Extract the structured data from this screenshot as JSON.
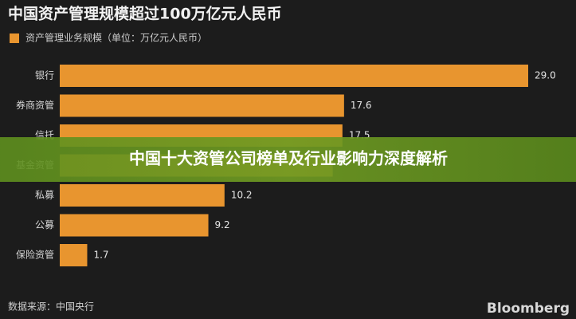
{
  "chart_data": {
    "type": "bar",
    "orientation": "horizontal",
    "title": "中国资产管理规模超过100万亿元人民币",
    "series": [
      {
        "name": "资产管理业务规模（单位：万亿元人民币）",
        "color": "#e8952f",
        "values": [
          29.0,
          17.6,
          17.5,
          16.9,
          10.2,
          9.2,
          1.7
        ],
        "value_labels": [
          "29.0",
          "17.6",
          "17.5",
          null,
          "10.2",
          "9.2",
          "1.7"
        ]
      }
    ],
    "categories": [
      "银行",
      "券商资管",
      "信托",
      "基金资管",
      "私募",
      "公募",
      "保险资管"
    ],
    "source": "数据来源：中国央行",
    "brand": "Bloomberg"
  },
  "banner": "中国十大资管公司榜单及行业影响力深度解析"
}
